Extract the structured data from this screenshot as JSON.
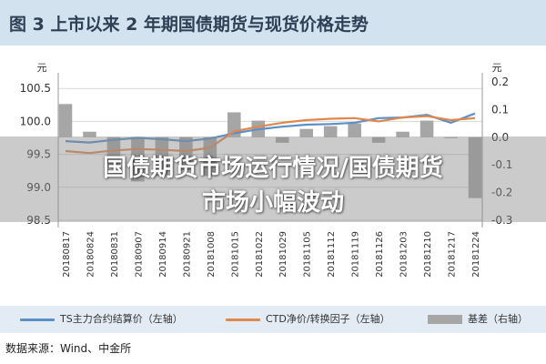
{
  "header": {
    "title": "图 3  上市以来 2 年期国债期货与现货价格走势"
  },
  "legend": {
    "ts": "TS主力合约结算价（左轴）",
    "ctd": "CTD净价/转换因子（左轴）",
    "basis": "基差（右轴）"
  },
  "source": "数据来源：Wind、中金所",
  "overlay": {
    "line1": "国债期货市场运行情况/国债期货",
    "line2": "市场小幅波动"
  },
  "colors": {
    "ts": "#5b8fc7",
    "ctd": "#e0874e",
    "basis": "#a6a6a6"
  },
  "chart_data": {
    "type": "line",
    "title": "上市以来 2 年期国债期货与现货价格走势",
    "x_ticks": [
      "20180817",
      "20180824",
      "20180831",
      "20180907",
      "20180914",
      "20180921",
      "20181008",
      "20181015",
      "20181022",
      "20181029",
      "20181105",
      "20181112",
      "20181119",
      "20181126",
      "20181203",
      "20181210",
      "20181217",
      "20181224"
    ],
    "y_left": {
      "unit": "元",
      "ticks": [
        98.5,
        99.0,
        99.5,
        100.0,
        100.5
      ],
      "ylim": [
        98.5,
        100.6
      ]
    },
    "y_right": {
      "unit": "元",
      "ticks": [
        -0.3,
        -0.2,
        -0.1,
        0.0,
        0.1,
        0.2
      ],
      "ylim": [
        -0.3,
        0.2
      ]
    },
    "series": [
      {
        "name": "TS主力合约结算价（左轴）",
        "axis": "left",
        "kind": "line",
        "values": [
          99.7,
          99.68,
          99.72,
          99.75,
          99.73,
          99.7,
          99.74,
          99.82,
          99.88,
          99.92,
          99.95,
          99.96,
          99.98,
          100.05,
          100.06,
          100.1,
          99.98,
          100.12
        ]
      },
      {
        "name": "CTD净价/转换因子（左轴）",
        "axis": "left",
        "kind": "line",
        "values": [
          99.55,
          99.52,
          99.56,
          99.58,
          99.57,
          99.55,
          99.6,
          99.85,
          99.92,
          99.98,
          100.02,
          100.04,
          100.05,
          100.0,
          100.06,
          100.08,
          100.02,
          100.05
        ]
      },
      {
        "name": "基差（右轴）",
        "axis": "right",
        "kind": "bar",
        "values": [
          0.12,
          0.02,
          -0.1,
          -0.16,
          -0.14,
          -0.12,
          -0.14,
          0.09,
          0.06,
          -0.02,
          0.03,
          0.04,
          0.05,
          -0.02,
          0.02,
          0.06,
          0.0,
          -0.22
        ]
      }
    ]
  }
}
